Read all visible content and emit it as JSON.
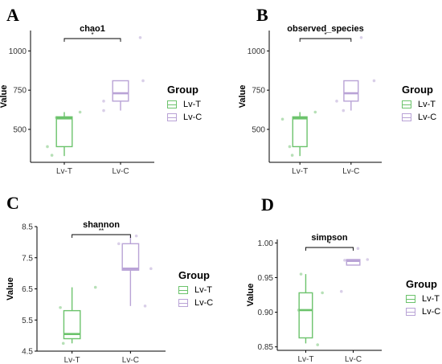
{
  "chart_data": [
    {
      "panel": "A",
      "type": "box",
      "title": "chao1",
      "xlabel": "",
      "ylabel": "Value",
      "categories": [
        "Lv-T",
        "Lv-C"
      ],
      "ylim": [
        290,
        1130
      ],
      "yticks": [
        500,
        750,
        1000
      ],
      "ytick_labels": [
        "500",
        "750",
        "1000"
      ],
      "boxes": [
        {
          "name": "Lv-T",
          "min": 330,
          "q1": 390,
          "median": 570,
          "q3": 580,
          "max": 610
        },
        {
          "name": "Lv-C",
          "min": 620,
          "q1": 680,
          "median": 730,
          "q3": 810,
          "max": 810
        }
      ],
      "points": [
        {
          "group": "Lv-T",
          "x": 0.7,
          "y": 390
        },
        {
          "group": "Lv-T",
          "x": 0.78,
          "y": 335
        },
        {
          "group": "Lv-T",
          "x": 0.86,
          "y": 575
        },
        {
          "group": "Lv-T",
          "x": 1.0,
          "y": 570
        },
        {
          "group": "Lv-T",
          "x": 1.28,
          "y": 610
        },
        {
          "group": "Lv-C",
          "x": 1.7,
          "y": 620
        },
        {
          "group": "Lv-C",
          "x": 1.7,
          "y": 680
        },
        {
          "group": "Lv-C",
          "x": 2.35,
          "y": 1085
        },
        {
          "group": "Lv-C",
          "x": 2.4,
          "y": 810
        }
      ],
      "significance": "*"
    },
    {
      "panel": "B",
      "type": "box",
      "title": "observed_species",
      "xlabel": "",
      "ylabel": "Value",
      "categories": [
        "Lv-T",
        "Lv-C"
      ],
      "ylim": [
        290,
        1130
      ],
      "yticks": [
        500,
        750,
        1000
      ],
      "ytick_labels": [
        "500",
        "750",
        "1000"
      ],
      "boxes": [
        {
          "name": "Lv-T",
          "min": 330,
          "q1": 390,
          "median": 570,
          "q3": 580,
          "max": 610
        },
        {
          "name": "Lv-C",
          "min": 620,
          "q1": 680,
          "median": 730,
          "q3": 810,
          "max": 810
        }
      ],
      "points": [
        {
          "group": "Lv-T",
          "x": 0.66,
          "y": 565
        },
        {
          "group": "Lv-T",
          "x": 0.8,
          "y": 390
        },
        {
          "group": "Lv-T",
          "x": 0.85,
          "y": 335
        },
        {
          "group": "Lv-T",
          "x": 1.0,
          "y": 575
        },
        {
          "group": "Lv-T",
          "x": 1.3,
          "y": 610
        },
        {
          "group": "Lv-C",
          "x": 1.72,
          "y": 680
        },
        {
          "group": "Lv-C",
          "x": 1.85,
          "y": 620
        },
        {
          "group": "Lv-C",
          "x": 2.2,
          "y": 1085
        },
        {
          "group": "Lv-C",
          "x": 2.45,
          "y": 810
        }
      ],
      "significance": "*"
    },
    {
      "panel": "C",
      "type": "box",
      "title": "shannon",
      "xlabel": "",
      "ylabel": "Value",
      "categories": [
        "Lv-T",
        "Lv-C"
      ],
      "ylim": [
        4.5,
        8.5
      ],
      "yticks": [
        4.5,
        5.5,
        6.5,
        7.5,
        8.5
      ],
      "ytick_labels": [
        "4.5",
        "5.5",
        "6.5",
        "7.5",
        "8.5"
      ],
      "boxes": [
        {
          "name": "Lv-T",
          "min": 4.75,
          "q1": 4.9,
          "median": 5.05,
          "q3": 5.8,
          "max": 6.55
        },
        {
          "name": "Lv-C",
          "min": 5.95,
          "q1": 7.1,
          "median": 7.15,
          "q3": 7.95,
          "max": 8.2
        }
      ],
      "points": [
        {
          "group": "Lv-T",
          "x": 0.8,
          "y": 5.9
        },
        {
          "group": "Lv-T",
          "x": 0.85,
          "y": 4.75
        },
        {
          "group": "Lv-T",
          "x": 1.0,
          "y": 5.05
        },
        {
          "group": "Lv-T",
          "x": 1.4,
          "y": 6.55
        },
        {
          "group": "Lv-C",
          "x": 1.8,
          "y": 7.95
        },
        {
          "group": "Lv-C",
          "x": 2.1,
          "y": 8.2
        },
        {
          "group": "Lv-C",
          "x": 2.25,
          "y": 5.95
        },
        {
          "group": "Lv-C",
          "x": 2.35,
          "y": 7.15
        }
      ],
      "significance": "**"
    },
    {
      "panel": "D",
      "type": "box",
      "title": "simpson",
      "xlabel": "",
      "ylabel": "Value",
      "categories": [
        "Lv-T",
        "Lv-C"
      ],
      "ylim": [
        0.845,
        1.005
      ],
      "yticks": [
        0.85,
        0.9,
        0.95,
        1.0
      ],
      "ytick_labels": [
        "0.85",
        "0.90",
        "0.95",
        "1.00"
      ],
      "boxes": [
        {
          "name": "Lv-T",
          "min": 0.855,
          "q1": 0.863,
          "median": 0.903,
          "q3": 0.928,
          "max": 0.955
        },
        {
          "name": "Lv-C",
          "min": 0.968,
          "q1": 0.968,
          "median": 0.974,
          "q3": 0.976,
          "max": 0.976
        }
      ],
      "points": [
        {
          "group": "Lv-T",
          "x": 0.85,
          "y": 0.903
        },
        {
          "group": "Lv-T",
          "x": 0.9,
          "y": 0.955
        },
        {
          "group": "Lv-T",
          "x": 1.25,
          "y": 0.853
        },
        {
          "group": "Lv-T",
          "x": 1.35,
          "y": 0.928
        },
        {
          "group": "Lv-C",
          "x": 1.75,
          "y": 0.93
        },
        {
          "group": "Lv-C",
          "x": 1.82,
          "y": 0.975
        },
        {
          "group": "Lv-C",
          "x": 2.1,
          "y": 0.992
        },
        {
          "group": "Lv-C",
          "x": 2.3,
          "y": 0.976
        }
      ],
      "significance": "*"
    }
  ],
  "legend": {
    "title": "Group",
    "items": [
      {
        "label": "Lv-T",
        "color": "#6cc36c"
      },
      {
        "label": "Lv-C",
        "color": "#b9a3d6"
      }
    ]
  },
  "colors": {
    "Lv-T": "#6cc36c",
    "Lv-C": "#b9a3d6",
    "Lv-T-point": "#b7e0b7",
    "Lv-C-point": "#d9cfe8"
  }
}
